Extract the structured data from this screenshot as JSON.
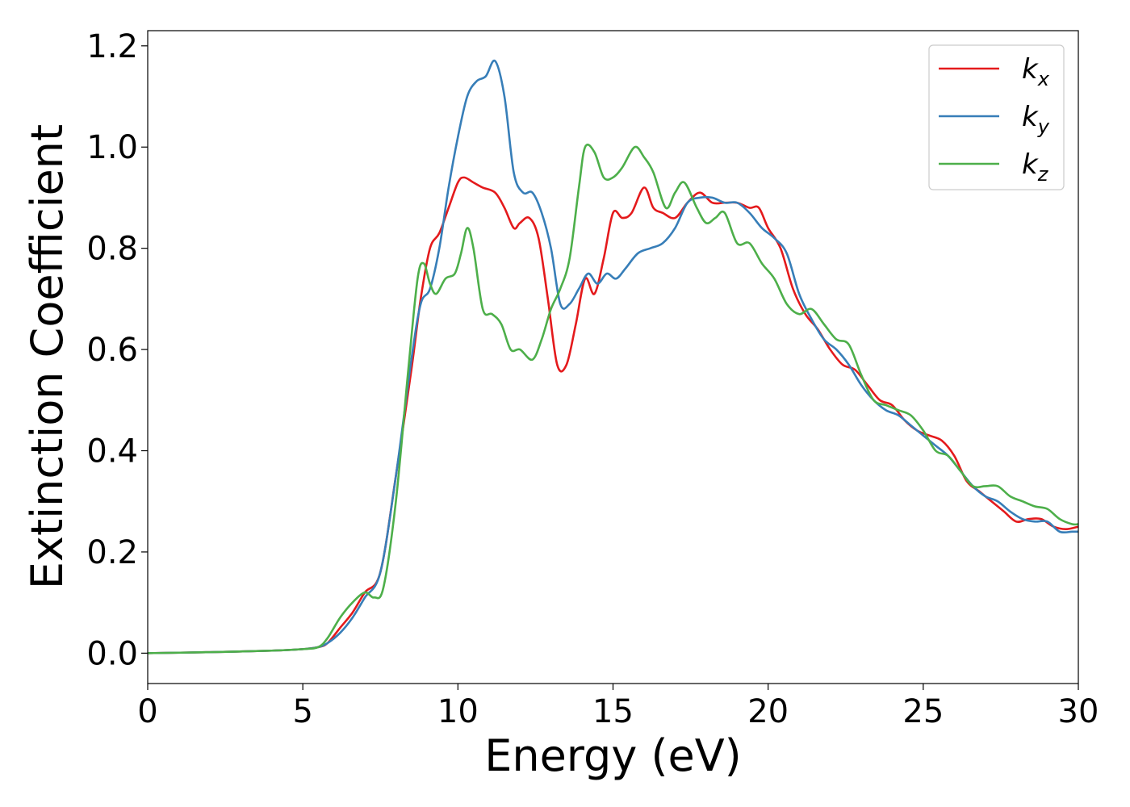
{
  "chart_data": {
    "type": "line",
    "title": "",
    "xlabel": "Energy (eV)",
    "ylabel": "Extinction Coefficient",
    "xlim": [
      0,
      30
    ],
    "ylim": [
      -0.06,
      1.23
    ],
    "xticks": [
      0,
      5,
      10,
      15,
      20,
      25,
      30
    ],
    "xtick_labels": [
      "0",
      "5",
      "10",
      "15",
      "20",
      "25",
      "30"
    ],
    "yticks": [
      0.0,
      0.2,
      0.4,
      0.6,
      0.8,
      1.0,
      1.2
    ],
    "ytick_labels": [
      "0.0",
      "0.2",
      "0.4",
      "0.6",
      "0.8",
      "1.0",
      "1.2"
    ],
    "grid": false,
    "legend_position": "top-right",
    "series": [
      {
        "name": "k_x",
        "legend_base": "k",
        "legend_sub": "x",
        "color": "#e41a1c",
        "x": [
          0,
          2,
          4,
          5,
          5.5,
          5.8,
          6.2,
          6.6,
          7.0,
          7.5,
          8.0,
          8.5,
          8.8,
          9.1,
          9.4,
          9.7,
          10.0,
          10.2,
          10.5,
          10.8,
          11.2,
          11.5,
          11.8,
          12.0,
          12.3,
          12.6,
          12.9,
          13.2,
          13.5,
          13.8,
          14.1,
          14.4,
          14.7,
          15.0,
          15.3,
          15.6,
          16.0,
          16.3,
          16.6,
          17.0,
          17.4,
          17.8,
          18.2,
          18.6,
          19.0,
          19.4,
          19.7,
          20.0,
          20.4,
          20.8,
          21.2,
          21.6,
          22.0,
          22.4,
          22.8,
          23.2,
          23.6,
          24.0,
          24.4,
          24.8,
          25.2,
          25.6,
          26.0,
          26.4,
          26.8,
          27.2,
          27.6,
          28.0,
          28.4,
          28.8,
          29.2,
          29.6,
          30.0
        ],
        "values": [
          0.0,
          0.002,
          0.005,
          0.008,
          0.012,
          0.02,
          0.05,
          0.08,
          0.12,
          0.16,
          0.35,
          0.56,
          0.7,
          0.8,
          0.83,
          0.88,
          0.93,
          0.94,
          0.93,
          0.92,
          0.91,
          0.88,
          0.84,
          0.85,
          0.86,
          0.82,
          0.7,
          0.57,
          0.57,
          0.65,
          0.74,
          0.71,
          0.78,
          0.87,
          0.86,
          0.87,
          0.92,
          0.88,
          0.87,
          0.86,
          0.89,
          0.91,
          0.89,
          0.89,
          0.89,
          0.88,
          0.88,
          0.84,
          0.8,
          0.72,
          0.67,
          0.64,
          0.6,
          0.57,
          0.56,
          0.53,
          0.5,
          0.49,
          0.46,
          0.44,
          0.43,
          0.42,
          0.39,
          0.34,
          0.32,
          0.3,
          0.28,
          0.26,
          0.265,
          0.265,
          0.25,
          0.245,
          0.25
        ]
      },
      {
        "name": "k_y",
        "legend_base": "k",
        "legend_sub": "y",
        "color": "#377eb8",
        "x": [
          0,
          2,
          4,
          5,
          5.5,
          5.8,
          6.2,
          6.6,
          7.0,
          7.5,
          8.0,
          8.5,
          8.8,
          9.1,
          9.4,
          9.7,
          10.0,
          10.3,
          10.6,
          10.9,
          11.2,
          11.5,
          11.8,
          12.1,
          12.4,
          12.7,
          13.0,
          13.3,
          13.6,
          13.9,
          14.2,
          14.5,
          14.8,
          15.1,
          15.4,
          15.8,
          16.2,
          16.6,
          17.0,
          17.4,
          17.8,
          18.2,
          18.6,
          19.0,
          19.4,
          19.8,
          20.2,
          20.6,
          21.0,
          21.4,
          21.8,
          22.2,
          22.6,
          23.0,
          23.4,
          23.8,
          24.2,
          24.6,
          25.0,
          25.4,
          25.8,
          26.2,
          26.6,
          27.0,
          27.4,
          27.8,
          28.2,
          28.6,
          29.0,
          29.4,
          29.8,
          30.0
        ],
        "values": [
          0.0,
          0.002,
          0.005,
          0.008,
          0.012,
          0.02,
          0.04,
          0.07,
          0.11,
          0.16,
          0.35,
          0.58,
          0.69,
          0.72,
          0.8,
          0.92,
          1.02,
          1.1,
          1.13,
          1.14,
          1.17,
          1.1,
          0.95,
          0.91,
          0.91,
          0.87,
          0.8,
          0.69,
          0.69,
          0.72,
          0.75,
          0.73,
          0.75,
          0.74,
          0.76,
          0.79,
          0.8,
          0.81,
          0.84,
          0.89,
          0.9,
          0.9,
          0.89,
          0.89,
          0.87,
          0.84,
          0.82,
          0.79,
          0.71,
          0.66,
          0.62,
          0.6,
          0.57,
          0.53,
          0.5,
          0.48,
          0.47,
          0.45,
          0.43,
          0.41,
          0.39,
          0.36,
          0.33,
          0.31,
          0.3,
          0.28,
          0.265,
          0.26,
          0.26,
          0.24,
          0.24,
          0.24
        ]
      },
      {
        "name": "k_z",
        "legend_base": "k",
        "legend_sub": "z",
        "color": "#4daf4a",
        "x": [
          0,
          2,
          4,
          5,
          5.5,
          5.8,
          6.2,
          6.6,
          7.0,
          7.3,
          7.6,
          8.0,
          8.4,
          8.7,
          8.9,
          9.1,
          9.3,
          9.6,
          9.9,
          10.1,
          10.3,
          10.5,
          10.8,
          11.1,
          11.4,
          11.7,
          12.0,
          12.4,
          12.7,
          13.0,
          13.3,
          13.6,
          13.9,
          14.1,
          14.4,
          14.7,
          15.0,
          15.3,
          15.7,
          16.0,
          16.3,
          16.7,
          17.0,
          17.3,
          17.7,
          18.0,
          18.3,
          18.6,
          19.0,
          19.4,
          19.8,
          20.2,
          20.6,
          21.0,
          21.4,
          21.8,
          22.2,
          22.6,
          23.0,
          23.4,
          23.8,
          24.2,
          24.6,
          25.0,
          25.4,
          25.8,
          26.2,
          26.6,
          27.0,
          27.4,
          27.8,
          28.2,
          28.6,
          29.0,
          29.4,
          29.8,
          30.0
        ],
        "values": [
          0.0,
          0.002,
          0.005,
          0.008,
          0.012,
          0.03,
          0.07,
          0.1,
          0.12,
          0.11,
          0.13,
          0.3,
          0.56,
          0.74,
          0.77,
          0.73,
          0.71,
          0.74,
          0.75,
          0.79,
          0.84,
          0.8,
          0.68,
          0.67,
          0.65,
          0.6,
          0.6,
          0.58,
          0.62,
          0.68,
          0.72,
          0.78,
          0.92,
          1.0,
          0.99,
          0.94,
          0.94,
          0.96,
          1.0,
          0.98,
          0.95,
          0.88,
          0.91,
          0.93,
          0.88,
          0.85,
          0.86,
          0.87,
          0.81,
          0.81,
          0.77,
          0.74,
          0.69,
          0.67,
          0.68,
          0.65,
          0.62,
          0.61,
          0.55,
          0.5,
          0.49,
          0.48,
          0.47,
          0.44,
          0.4,
          0.39,
          0.36,
          0.33,
          0.33,
          0.33,
          0.31,
          0.3,
          0.29,
          0.285,
          0.265,
          0.255,
          0.255
        ]
      }
    ]
  }
}
